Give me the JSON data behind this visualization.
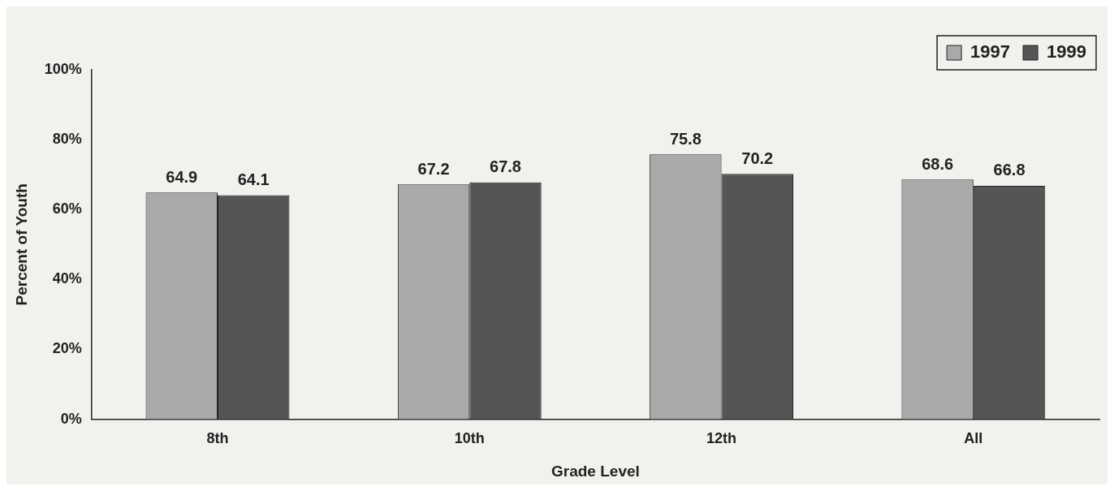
{
  "chart_data": {
    "type": "bar",
    "xlabel": "Grade Level",
    "ylabel": "Percent of Youth",
    "categories": [
      "8th",
      "10th",
      "12th",
      "All"
    ],
    "series": [
      {
        "name": "1997",
        "color": "#a9a9a9",
        "values": [
          64.9,
          67.2,
          75.8,
          68.6
        ]
      },
      {
        "name": "1999",
        "color": "#555555",
        "values": [
          64.1,
          67.8,
          70.2,
          66.8
        ]
      }
    ],
    "ylim": [
      0,
      100
    ],
    "yticks": [
      {
        "value": 0,
        "label": "0%"
      },
      {
        "value": 20,
        "label": "20%"
      },
      {
        "value": 40,
        "label": "40%"
      },
      {
        "value": 60,
        "label": "60%"
      },
      {
        "value": 80,
        "label": "80%"
      },
      {
        "value": 100,
        "label": "100%"
      }
    ],
    "grid": false,
    "legend": "top right",
    "data_labels": true
  }
}
